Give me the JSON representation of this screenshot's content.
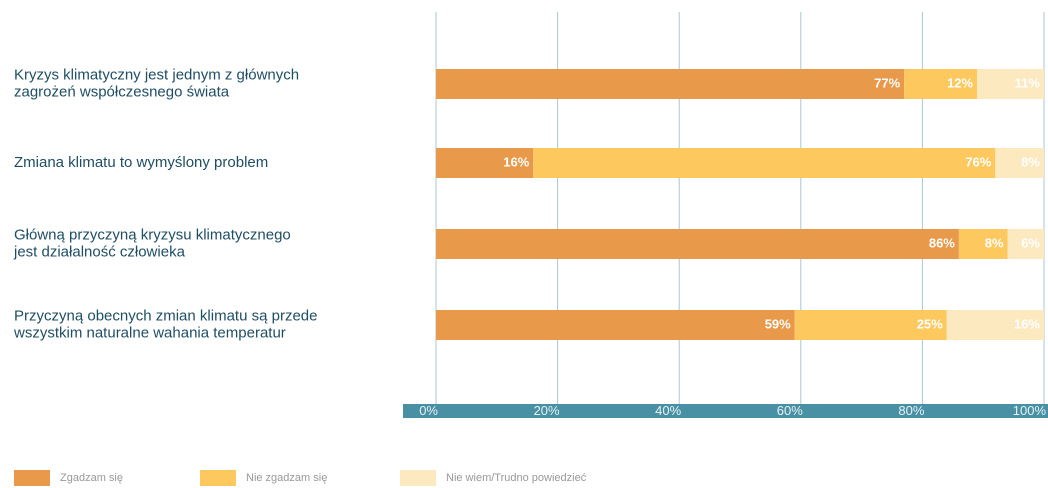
{
  "chart_data": {
    "type": "stacked-barh",
    "categories": [
      [
        "Kryzys klimatyczny jest jednym z głównych",
        "zagrożeń współczesnego świata"
      ],
      [
        "Zmiana klimatu to wymyślony problem"
      ],
      [
        "Główną przyczyną kryzysu klimatycznego",
        "jest działalność człowieka"
      ],
      [
        "Przyczyną obecnych zmian klimatu są przede",
        "wszystkim naturalne wahania temperatur"
      ]
    ],
    "series": [
      {
        "name": "Zgadzam się",
        "color": "#e8994a",
        "values": [
          77,
          16,
          86,
          59
        ],
        "value_labels": [
          "77%",
          "16%",
          "86%",
          "59%"
        ]
      },
      {
        "name": "Nie zgadzam się",
        "color": "#fdc95e",
        "values": [
          12,
          76,
          8,
          25
        ],
        "value_labels": [
          "12%",
          "76%",
          "8%",
          "25%"
        ]
      },
      {
        "name": "Nie wiem/Trudno powiedzieć",
        "color": "#fde9c0",
        "values": [
          11,
          8,
          6,
          16
        ],
        "value_labels": [
          "11%",
          "8%",
          "6%",
          "16%"
        ]
      }
    ],
    "xlim": [
      0,
      100
    ],
    "xticks": [
      {
        "value": 0,
        "label": "0%"
      },
      {
        "value": 20,
        "label": "20%"
      },
      {
        "value": 40,
        "label": "40%"
      },
      {
        "value": 60,
        "label": "60%"
      },
      {
        "value": 80,
        "label": "80%"
      },
      {
        "value": 100,
        "label": "100%"
      }
    ],
    "grid": true
  }
}
